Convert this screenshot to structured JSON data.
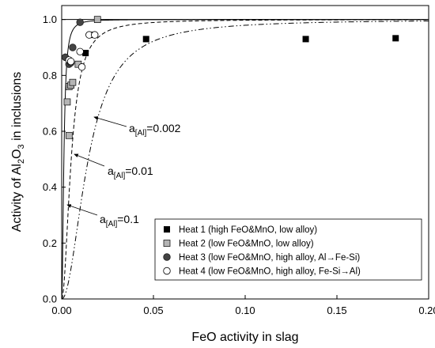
{
  "chart_data": {
    "type": "scatter",
    "xlabel": "FeO activity in slag",
    "ylabel_parts": [
      "Activity of Al",
      "2",
      "O",
      "3",
      " in inclusions"
    ],
    "xlim": [
      0,
      0.2
    ],
    "ylim": [
      0,
      1.05
    ],
    "x_ticks": [
      "0.00",
      "0.05",
      "0.10",
      "0.15",
      "0.20"
    ],
    "x_tick_values": [
      0,
      0.05,
      0.1,
      0.15,
      0.2
    ],
    "y_ticks": [
      "0.0",
      "0.2",
      "0.4",
      "0.6",
      "0.8",
      "1.0"
    ],
    "y_tick_values": [
      0,
      0.2,
      0.4,
      0.6,
      0.8,
      1.0
    ],
    "grid": false,
    "legend_position": "bottom-right",
    "series": [
      {
        "name": "Heat 1 (high FeO&MnO, low alloy)",
        "marker": "square",
        "color": "#000000",
        "x": [
          0.013,
          0.017,
          0.046,
          0.133,
          0.182
        ],
        "y": [
          0.88,
          0.945,
          0.93,
          0.93,
          0.933
        ]
      },
      {
        "name": "Heat 2 (low FeO&MnO, low alloy)",
        "marker": "square",
        "color": "#b4b4b4",
        "x": [
          0.003,
          0.004,
          0.004,
          0.005,
          0.006,
          0.009,
          0.0195
        ],
        "y": [
          0.705,
          0.76,
          0.585,
          0.765,
          0.775,
          0.84,
          1.0
        ]
      },
      {
        "name": "Heat 3 (low FeO&MnO, high alloy, Al→Fe-Si)",
        "marker": "circle",
        "color": "#444444",
        "x": [
          0.002,
          0.004,
          0.005,
          0.006,
          0.01
        ],
        "y": [
          0.865,
          0.84,
          0.845,
          0.9,
          0.99
        ]
      },
      {
        "name": "Heat 4 (low FeO&MnO, high alloy, Fe-Si→Al)",
        "marker": "circle",
        "color": "#ffffff",
        "x": [
          0.004,
          0.005,
          0.01,
          0.011,
          0.015,
          0.018
        ],
        "y": [
          0.855,
          0.85,
          0.885,
          0.83,
          0.945,
          0.945
        ]
      }
    ],
    "curves": [
      {
        "label": "0.1",
        "k": 0.0012,
        "dash": ""
      },
      {
        "label": "0.01",
        "k": 0.0052,
        "dash": "5,3"
      },
      {
        "label": "0.002",
        "k": 0.0145,
        "dash": "7,3,1.5,3,1.5,3"
      }
    ],
    "annotations": [
      {
        "prefix": "a",
        "sub": "[Al]",
        "value": "=0.002"
      },
      {
        "prefix": "a",
        "sub": "[Al]",
        "value": "=0.01"
      },
      {
        "prefix": "a",
        "sub": "[Al]",
        "value": "=0.1"
      }
    ],
    "reference_line_y": 1.0
  }
}
